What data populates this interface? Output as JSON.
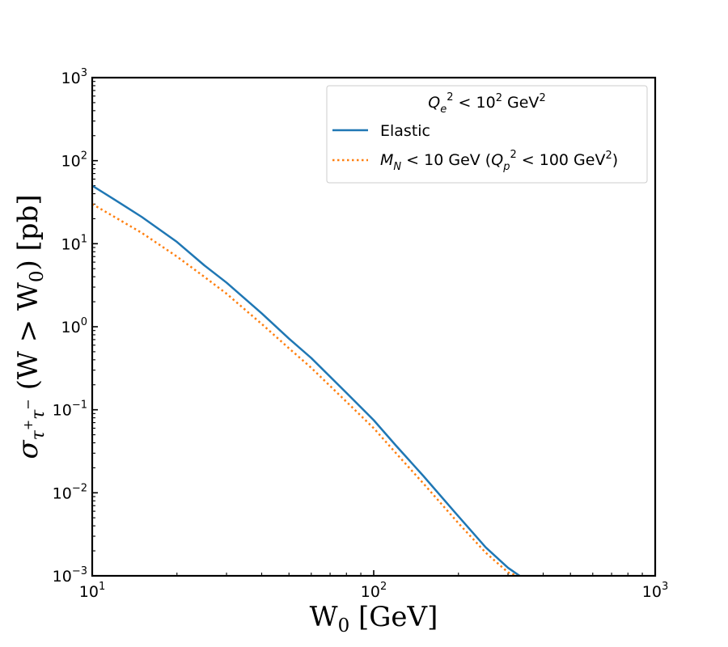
{
  "chart_data": {
    "type": "line",
    "xscale": "log",
    "yscale": "log",
    "xlim": [
      10,
      1000
    ],
    "ylim": [
      0.001,
      1000
    ],
    "xlabel": "W0 [GeV]",
    "ylabel": "σ τ+τ− (W > W0) [pb]",
    "x_ticks": [
      {
        "base": "10",
        "exp": "1"
      },
      {
        "base": "10",
        "exp": "2"
      },
      {
        "base": "10",
        "exp": "3"
      }
    ],
    "y_ticks": [
      {
        "base": "10",
        "exp": "−3"
      },
      {
        "base": "10",
        "exp": "−2"
      },
      {
        "base": "10",
        "exp": "−1"
      },
      {
        "base": "10",
        "exp": "0"
      },
      {
        "base": "10",
        "exp": "1"
      },
      {
        "base": "10",
        "exp": "2"
      },
      {
        "base": "10",
        "exp": "3"
      }
    ],
    "legend": {
      "location": "top-right",
      "title": "Q_e^2 < 10^2 GeV^2",
      "entries": [
        "Elastic",
        "M_N < 10 GeV (Q_p^2 < 100 GeV^2)"
      ]
    },
    "series": [
      {
        "name": "Elastic",
        "color": "#1f77b4",
        "style": "solid",
        "x": [
          10,
          12,
          15,
          20,
          25,
          30,
          40,
          50,
          60,
          80,
          100,
          120,
          150,
          200,
          250,
          300,
          330
        ],
        "y": [
          50,
          34,
          21,
          10.5,
          5.5,
          3.4,
          1.45,
          0.72,
          0.42,
          0.16,
          0.075,
          0.037,
          0.016,
          0.0052,
          0.0022,
          0.00125,
          0.001
        ]
      },
      {
        "name": "M_N < 10 GeV (Q_p^2 < 100 GeV^2)",
        "color": "#ff7f0e",
        "style": "dotted",
        "x": [
          10,
          12,
          15,
          20,
          25,
          30,
          40,
          50,
          60,
          80,
          100,
          120,
          150,
          200,
          250,
          300,
          325
        ],
        "y": [
          30,
          21,
          13.5,
          7.0,
          4.0,
          2.5,
          1.08,
          0.55,
          0.32,
          0.125,
          0.06,
          0.03,
          0.013,
          0.0043,
          0.0019,
          0.0011,
          0.001
        ]
      }
    ]
  }
}
